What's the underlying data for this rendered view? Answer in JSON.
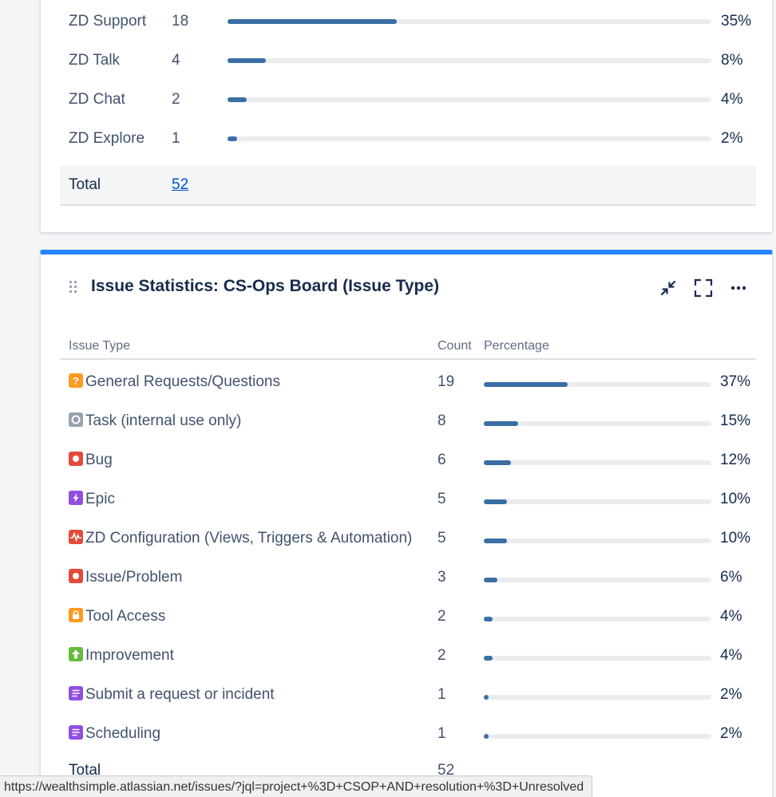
{
  "top_panel": {
    "rows": [
      {
        "name": "ZD Support",
        "count": "18",
        "pct": "35%",
        "fraction": 0.35
      },
      {
        "name": "ZD Talk",
        "count": "4",
        "pct": "8%",
        "fraction": 0.08
      },
      {
        "name": "ZD Chat",
        "count": "2",
        "pct": "4%",
        "fraction": 0.04
      },
      {
        "name": "ZD Explore",
        "count": "1",
        "pct": "2%",
        "fraction": 0.02
      }
    ],
    "total_label": "Total",
    "total_value": "52"
  },
  "gadget": {
    "title": "Issue Statistics: CS-Ops Board (Issue Type)",
    "icons": [
      "minimize-icon",
      "fullscreen-icon",
      "more-icon"
    ],
    "columns": {
      "type": "Issue Type",
      "count": "Count",
      "percentage": "Percentage"
    },
    "rows": [
      {
        "name": "General Requests/Questions",
        "count": "19",
        "pct": "37%",
        "fraction": 0.37,
        "icon": "question-icon",
        "color": "#ff991f"
      },
      {
        "name": "Task (internal use only)",
        "count": "8",
        "pct": "15%",
        "fraction": 0.15,
        "icon": "task-icon",
        "color": "#97a0af"
      },
      {
        "name": "Bug",
        "count": "6",
        "pct": "12%",
        "fraction": 0.12,
        "icon": "bug-icon",
        "color": "#e5493a"
      },
      {
        "name": "Epic",
        "count": "5",
        "pct": "10%",
        "fraction": 0.1,
        "icon": "epic-icon",
        "color": "#904ee2"
      },
      {
        "name": "ZD Configuration (Views, Triggers & Automation)",
        "count": "5",
        "pct": "10%",
        "fraction": 0.1,
        "icon": "pulse-icon",
        "color": "#e5493a"
      },
      {
        "name": "Issue/Problem",
        "count": "3",
        "pct": "6%",
        "fraction": 0.06,
        "icon": "bug-icon",
        "color": "#e5493a"
      },
      {
        "name": "Tool Access",
        "count": "2",
        "pct": "4%",
        "fraction": 0.04,
        "icon": "lock-icon",
        "color": "#ff991f"
      },
      {
        "name": "Improvement",
        "count": "2",
        "pct": "4%",
        "fraction": 0.04,
        "icon": "arrow-up-icon",
        "color": "#63ba3c"
      },
      {
        "name": "Submit a request or incident",
        "count": "1",
        "pct": "2%",
        "fraction": 0.02,
        "icon": "document-icon",
        "color": "#904ee2"
      },
      {
        "name": "Scheduling",
        "count": "1",
        "pct": "2%",
        "fraction": 0.02,
        "icon": "document-icon",
        "color": "#904ee2"
      }
    ],
    "total_label": "Total",
    "total_value": "52"
  },
  "status_bar": {
    "url": "https://wealthsimple.atlassian.net/issues/?jql=project+%3D+CSOP+AND+resolution+%3D+Unresolved"
  },
  "colors": {
    "accent": "#2684ff",
    "bar_fill": "#3a6ea5",
    "bar_track": "#ebecf0",
    "link": "#0052cc"
  }
}
